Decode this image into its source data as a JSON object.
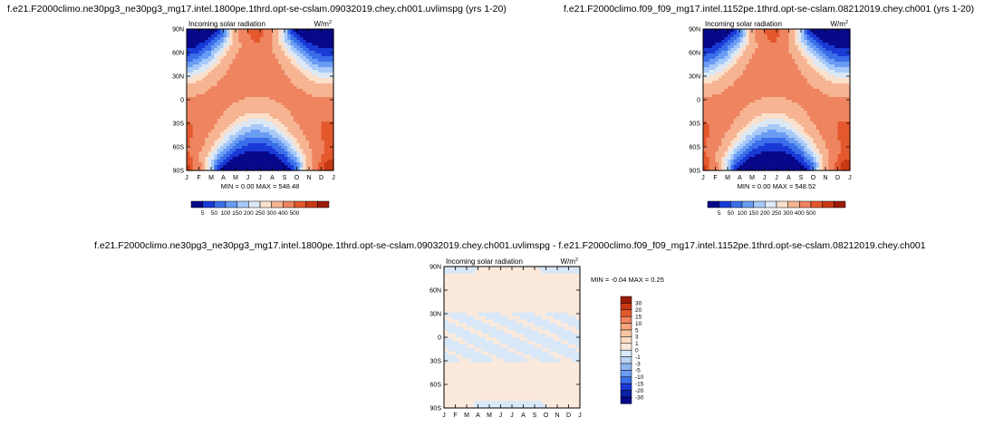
{
  "chart_data": [
    {
      "type": "heatmap",
      "case_title": "f.e21.F2000climo.ne30pg3_ne30pg3_mg17.intel.1800pe.1thrd.opt-se-cslam.09032019.chey.ch001.uvlimspg (yrs 1-20)",
      "title": "Incoming solar radiation",
      "units": "W/m²",
      "units_base": "W/m",
      "units_exp": "2",
      "x_tick_labels": [
        "J",
        "F",
        "M",
        "A",
        "M",
        "J",
        "J",
        "A",
        "S",
        "O",
        "N",
        "D",
        "J"
      ],
      "y_tick_labels": [
        "90N",
        "60N",
        "30N",
        "0",
        "30S",
        "60S",
        "90S"
      ],
      "y_values": [
        90,
        60,
        30,
        0,
        -30,
        -60,
        -90
      ],
      "stats": "MIN =   0.00 MAX = 548.48",
      "min": 0.0,
      "max": 548.48,
      "colorbar_levels": [
        "5",
        "50",
        "100",
        "150",
        "200",
        "250",
        "300",
        "400",
        "500"
      ],
      "colorbar_colors": [
        "#08088a",
        "#1a3ad6",
        "#3b6fe8",
        "#6a9cf4",
        "#a7c9f8",
        "#dde8f5",
        "#fbe0cb",
        "#f6b492",
        "#ef8460",
        "#e4582d",
        "#c73914",
        "#9c1b08"
      ]
    },
    {
      "type": "heatmap",
      "case_title": "f.e21.F2000climo.f09_f09_mg17.intel.1152pe.1thrd.opt-se-cslam.08212019.chey.ch001 (yrs 1-20)",
      "title": "Incoming solar radiation",
      "units": "W/m²",
      "units_base": "W/m",
      "units_exp": "2",
      "x_tick_labels": [
        "J",
        "F",
        "M",
        "A",
        "M",
        "J",
        "J",
        "A",
        "S",
        "O",
        "N",
        "D",
        "J"
      ],
      "y_tick_labels": [
        "90N",
        "60N",
        "30N",
        "0",
        "30S",
        "60S",
        "90S"
      ],
      "y_values": [
        90,
        60,
        30,
        0,
        -30,
        -60,
        -90
      ],
      "stats": "MIN =   0.00 MAX = 548.52",
      "min": 0.0,
      "max": 548.52,
      "colorbar_levels": [
        "5",
        "50",
        "100",
        "150",
        "200",
        "250",
        "300",
        "400",
        "500"
      ],
      "colorbar_colors": [
        "#08088a",
        "#1a3ad6",
        "#3b6fe8",
        "#6a9cf4",
        "#a7c9f8",
        "#dde8f5",
        "#fbe0cb",
        "#f6b492",
        "#ef8460",
        "#e4582d",
        "#c73914",
        "#9c1b08"
      ]
    },
    {
      "type": "heatmap",
      "case_title": "f.e21.F2000climo.ne30pg3_ne30pg3_mg17.intel.1800pe.1thrd.opt-se-cslam.09032019.chey.ch001.uvlimspg - f.e21.F2000climo.f09_f09_mg17.intel.1152pe.1thrd.opt-se-cslam.08212019.chey.ch001",
      "title": "Incoming solar radiation",
      "units": "W/m²",
      "units_base": "W/m",
      "units_exp": "2",
      "x_tick_labels": [
        "J",
        "F",
        "M",
        "A",
        "M",
        "J",
        "J",
        "A",
        "S",
        "O",
        "N",
        "D",
        "J"
      ],
      "y_tick_labels": [
        "90N",
        "60N",
        "30N",
        "0",
        "30S",
        "60S",
        "90S"
      ],
      "y_values": [
        90,
        60,
        30,
        0,
        -30,
        -60,
        -90
      ],
      "stats": "MIN =  -0.04 MAX =   0.25",
      "min": -0.04,
      "max": 0.25,
      "colorbar_levels": [
        "30",
        "20",
        "15",
        "10",
        "5",
        "3",
        "1",
        "0",
        "-1",
        "-3",
        "-5",
        "-10",
        "-15",
        "-20",
        "-30"
      ],
      "colorbar_colors": [
        "#9c1b08",
        "#c73914",
        "#e4582d",
        "#ef8460",
        "#f6a47a",
        "#f9c4a2",
        "#fbdcc4",
        "#fbe9dc",
        "#d8e8f8",
        "#b9d4f5",
        "#8fb6f0",
        "#6a9cf4",
        "#3b6fe8",
        "#1a3ad6",
        "#0c1fa8",
        "#08088a"
      ]
    }
  ]
}
